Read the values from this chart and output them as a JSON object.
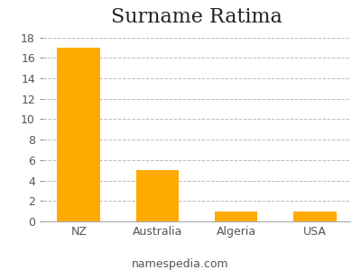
{
  "title": "Surname Ratima",
  "categories": [
    "NZ",
    "Australia",
    "Algeria",
    "USA"
  ],
  "values": [
    17,
    5,
    1,
    1
  ],
  "bar_color": "#FFAA00",
  "background_color": "#ffffff",
  "ylim": [
    0,
    18.5
  ],
  "yticks": [
    0,
    2,
    4,
    6,
    8,
    10,
    12,
    14,
    16,
    18
  ],
  "grid_color": "#bbbbbb",
  "title_fontsize": 16,
  "tick_fontsize": 9,
  "xlabel_fontsize": 9,
  "footer_text": "namespedia.com",
  "footer_fontsize": 9,
  "bar_width": 0.55
}
